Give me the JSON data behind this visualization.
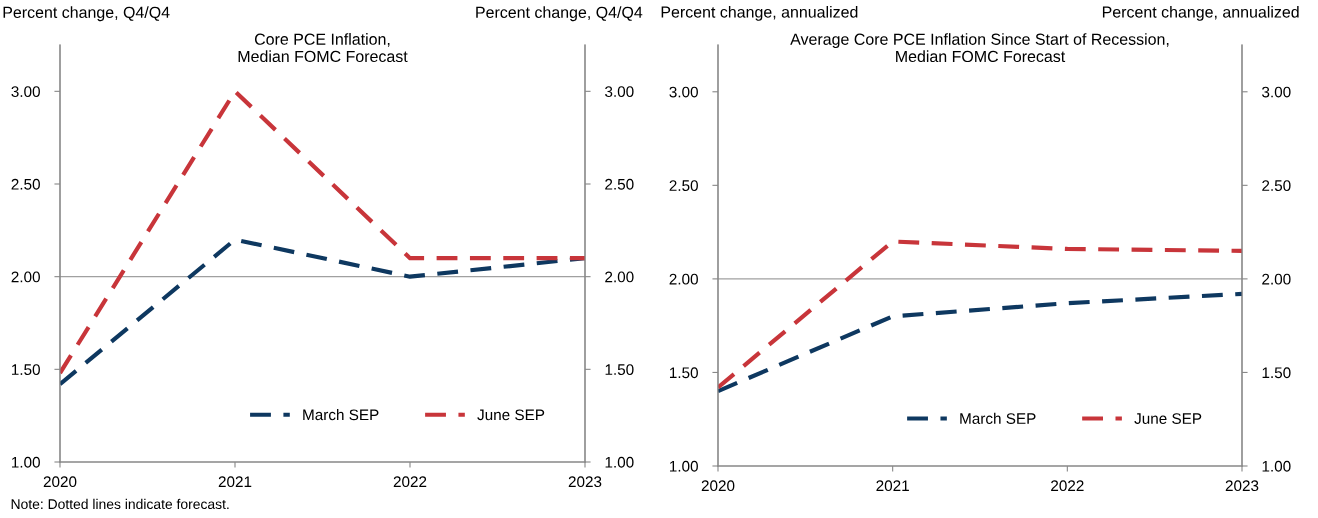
{
  "chart_data": [
    {
      "type": "line",
      "title": "Core PCE Inflation,\nMedian FOMC Forecast",
      "ylabel": "Percent change, Q4/Q4",
      "y2label": "Percent change, Q4/Q4",
      "x": [
        2020,
        2021,
        2022,
        2023
      ],
      "xlim": [
        2020,
        2023
      ],
      "xticks": [
        2020,
        2021,
        2022,
        2023
      ],
      "ylim": [
        1,
        3.25
      ],
      "yticks": [
        {
          "value": 1,
          "label": "1.00"
        },
        {
          "value": 1.5,
          "label": "1.50"
        },
        {
          "value": 2,
          "label": "2.00"
        },
        {
          "value": 2.5,
          "label": "2.50"
        },
        {
          "value": 3,
          "label": "3.00"
        }
      ],
      "y2lim": [
        1,
        3.25
      ],
      "y2ticks": [
        {
          "value": 1,
          "label": "1.00"
        },
        {
          "value": 1.5,
          "label": "1.50"
        },
        {
          "value": 2,
          "label": "2.00"
        },
        {
          "value": 2.5,
          "label": "2.50"
        },
        {
          "value": 3,
          "label": "3.00"
        }
      ],
      "ref_lines": [
        {
          "axis": "y",
          "value": 2,
          "color": "#a0a0a0"
        }
      ],
      "line_style": "dashed",
      "legend": "bottom right",
      "grid": false,
      "series": [
        {
          "name": "March SEP",
          "color": "#0e3860",
          "values": [
            1.42,
            2.2,
            2.0,
            2.1
          ]
        },
        {
          "name": "June SEP",
          "color": "#c8353a",
          "values": [
            1.48,
            3.0,
            2.1,
            2.1
          ]
        }
      ],
      "annotations": [
        "Note: Dotted lines indicate forecast."
      ]
    },
    {
      "type": "line",
      "title": "Average Core PCE Inflation Since Start of Recession,\nMedian FOMC Forecast",
      "ylabel": "Percent change, annualized",
      "y2label": "Percent change, annualized",
      "x": [
        2020,
        2021,
        2022,
        2023
      ],
      "xlim": [
        2020,
        2023
      ],
      "xticks": [
        2020,
        2021,
        2022,
        2023
      ],
      "ylim": [
        1,
        3.25
      ],
      "yticks": [
        {
          "value": 1,
          "label": "1.00"
        },
        {
          "value": 1.5,
          "label": "1.50"
        },
        {
          "value": 2,
          "label": "2.00"
        },
        {
          "value": 2.5,
          "label": "2.50"
        },
        {
          "value": 3,
          "label": "3.00"
        }
      ],
      "y2lim": [
        1,
        3.25
      ],
      "y2ticks": [
        {
          "value": 1,
          "label": "1.00"
        },
        {
          "value": 1.5,
          "label": "1.50"
        },
        {
          "value": 2,
          "label": "2.00"
        },
        {
          "value": 2.5,
          "label": "2.50"
        },
        {
          "value": 3,
          "label": "3.00"
        }
      ],
      "ref_lines": [
        {
          "axis": "y",
          "value": 2,
          "color": "#a0a0a0"
        }
      ],
      "line_style": "dashed",
      "legend": "bottom right",
      "grid": false,
      "series": [
        {
          "name": "March SEP",
          "color": "#0e3860",
          "values": [
            1.4,
            1.8,
            1.87,
            1.92
          ]
        },
        {
          "name": "June SEP",
          "color": "#c8353a",
          "values": [
            1.42,
            2.2,
            2.16,
            2.15
          ]
        }
      ]
    }
  ]
}
